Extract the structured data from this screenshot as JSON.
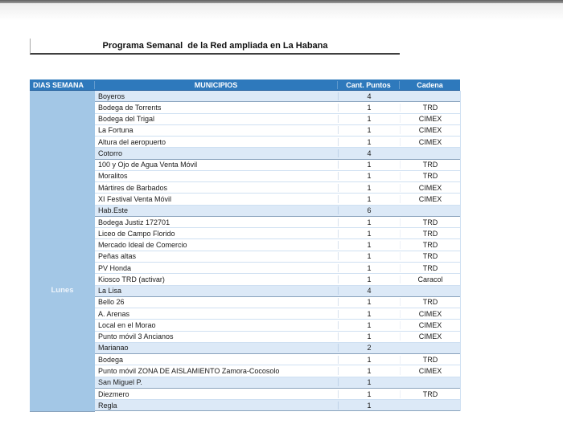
{
  "page": {
    "top_bar_color": "#5f5f5f",
    "background": "#ffffff"
  },
  "title": "Programa Semanal  de la Red ampliada en La Habana",
  "table": {
    "headers": {
      "dias": "DIAS SEMANA",
      "municipios": "MUNICIPIOS",
      "cantidad": "Cant. Puntos",
      "cadena": "Cadena"
    },
    "day_label": "Lunes",
    "colors": {
      "header_bg": "#2e79bc",
      "header_text": "#ffffff",
      "day_col_bg": "#a3c7e6",
      "group_row_bg": "#dce9f7",
      "detail_row_bg": "#ffffff",
      "row_border": "#cfe0f2",
      "group_border": "#8aa3bd"
    },
    "rows": [
      {
        "municipio": "Boyeros",
        "cantidad": "4",
        "cadena": "",
        "group": true
      },
      {
        "municipio": "Bodega de Torrents",
        "cantidad": "1",
        "cadena": "TRD",
        "group": false
      },
      {
        "municipio": "Bodega del Trigal",
        "cantidad": "1",
        "cadena": "CIMEX",
        "group": false
      },
      {
        "municipio": "La Fortuna",
        "cantidad": "1",
        "cadena": "CIMEX",
        "group": false
      },
      {
        "municipio": "Altura del aeropuerto",
        "cantidad": "1",
        "cadena": "CIMEX",
        "group": false
      },
      {
        "municipio": "Cotorro",
        "cantidad": "4",
        "cadena": "",
        "group": true
      },
      {
        "municipio": "100 y Ojo de Agua Venta Móvil",
        "cantidad": "1",
        "cadena": "TRD",
        "group": false
      },
      {
        "municipio": "Moralitos",
        "cantidad": "1",
        "cadena": "TRD",
        "group": false
      },
      {
        "municipio": "Mártires de Barbados",
        "cantidad": "1",
        "cadena": "CIMEX",
        "group": false
      },
      {
        "municipio": "XI Festival Venta Móvil",
        "cantidad": "1",
        "cadena": "CIMEX",
        "group": false
      },
      {
        "municipio": "Hab.Este",
        "cantidad": "6",
        "cadena": "",
        "group": true
      },
      {
        "municipio": "Bodega Justiz 172701",
        "cantidad": "1",
        "cadena": "TRD",
        "group": false
      },
      {
        "municipio": "Liceo de Campo Florido",
        "cantidad": "1",
        "cadena": "TRD",
        "group": false
      },
      {
        "municipio": "Mercado Ideal de Comercio",
        "cantidad": "1",
        "cadena": "TRD",
        "group": false
      },
      {
        "municipio": "Peñas altas",
        "cantidad": "1",
        "cadena": "TRD",
        "group": false
      },
      {
        "municipio": "PV Honda",
        "cantidad": "1",
        "cadena": "TRD",
        "group": false
      },
      {
        "municipio": "Kiosco TRD (activar)",
        "cantidad": "1",
        "cadena": "Caracol",
        "group": false
      },
      {
        "municipio": "La Lisa",
        "cantidad": "4",
        "cadena": "",
        "group": true
      },
      {
        "municipio": "Bello 26",
        "cantidad": "1",
        "cadena": "TRD",
        "group": false
      },
      {
        "municipio": "A. Arenas",
        "cantidad": "1",
        "cadena": "CIMEX",
        "group": false
      },
      {
        "municipio": "Local en el Morao",
        "cantidad": "1",
        "cadena": "CIMEX",
        "group": false
      },
      {
        "municipio": "Punto móvil 3 Ancianos",
        "cantidad": "1",
        "cadena": "CIMEX",
        "group": false
      },
      {
        "municipio": "Marianao",
        "cantidad": "2",
        "cadena": "",
        "group": true
      },
      {
        "municipio": "Bodega",
        "cantidad": "1",
        "cadena": "TRD",
        "group": false
      },
      {
        "municipio": "Punto móvil ZONA DE AISLAMIENTO Zamora-Cocosolo",
        "cantidad": "1",
        "cadena": "CIMEX",
        "group": false
      },
      {
        "municipio": "San Miguel P.",
        "cantidad": "1",
        "cadena": "",
        "group": true
      },
      {
        "municipio": "Diezmero",
        "cantidad": "1",
        "cadena": "TRD",
        "group": false
      },
      {
        "municipio": "Regla",
        "cantidad": "1",
        "cadena": "",
        "group": true
      }
    ]
  }
}
